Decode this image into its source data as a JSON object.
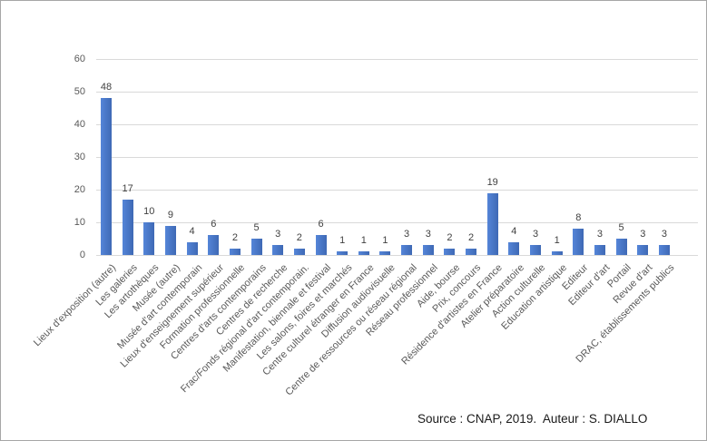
{
  "chart_data": {
    "type": "bar",
    "categories": [
      "Lieux d'exposition (autre)",
      "Les galeries",
      "Les artothèques",
      "Musée (autre)",
      "Musée d'art contemporain",
      "Lieux d'enseignement supérieur",
      "Formation professionnelle",
      "Centres d'arts contemporains",
      "Centres de recherche",
      "Frac/Fonds régional d'art contemporain.",
      "Manifestation, biennale et festival",
      "Les salons, foires et marchés",
      "Centre culturel étranger en France",
      "Diffusion audiovisuelle",
      "Centre de ressources ou réseau régional",
      "Réseau professionnel",
      "Aide, bourse",
      "Prix, concours",
      "Résidence d'artistes en France",
      "Atelier préparatoire",
      "Action culturelle",
      "Education artistique",
      "Editeur",
      "Editeur d'art",
      "Portail",
      "Revue d'art",
      "DRAC, établissements publics"
    ],
    "values": [
      48,
      17,
      10,
      9,
      4,
      6,
      2,
      5,
      3,
      2,
      6,
      1,
      1,
      1,
      3,
      3,
      2,
      2,
      19,
      4,
      3,
      1,
      8,
      3,
      5,
      3,
      3
    ],
    "yticks": [
      0,
      10,
      20,
      30,
      40,
      50,
      60
    ],
    "ylim": [
      0,
      60
    ],
    "grid": true,
    "legend_position": "none",
    "value_labels_shown": true,
    "category_label_rotation_deg": 45,
    "source_note": "Source : CNAP, 2019.  Auteur : S. DIALLO",
    "colors": {
      "bar_gradient_left": "#5585d8",
      "bar_gradient_right": "#3e69b5",
      "gridline": "#d9d9d9",
      "axis_label": "#595959",
      "value_label": "#404040",
      "source_text": "#1a1a1a",
      "frame_border": "#a6a6a6"
    }
  }
}
